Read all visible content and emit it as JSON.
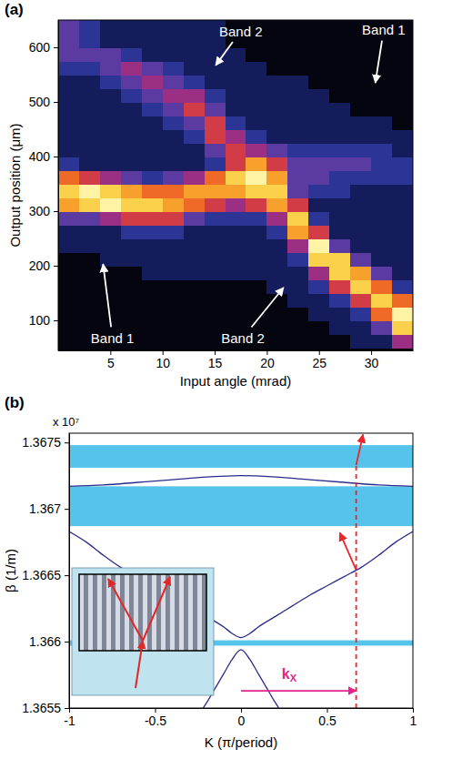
{
  "chart_data": [
    {
      "type": "heatmap",
      "title": "(a)",
      "xlabel": "Input angle (mrad)",
      "ylabel": "Output position (μm)",
      "xlim": [
        0,
        34
      ],
      "ylim": [
        45,
        650
      ],
      "xticks": [
        5,
        10,
        15,
        20,
        25,
        30
      ],
      "yticks": [
        100,
        200,
        300,
        400,
        500,
        600
      ],
      "x_edges": [
        0,
        2,
        4,
        6,
        8,
        10,
        12,
        14,
        16,
        18,
        20,
        22,
        24,
        26,
        28,
        30,
        32,
        34
      ],
      "y_edges": [
        50,
        75,
        100,
        125,
        150,
        175,
        200,
        225,
        250,
        275,
        300,
        325,
        350,
        375,
        400,
        425,
        450,
        475,
        500,
        525,
        550,
        575,
        600,
        625,
        650
      ],
      "cells": [
        [
          0,
          0,
          0,
          0,
          0,
          0,
          0,
          1,
          1,
          3,
          7,
          8,
          6,
          2,
          1,
          1,
          1,
          1,
          1,
          1,
          2,
          3,
          3,
          3
        ],
        [
          0,
          0,
          0,
          0,
          0,
          0,
          0,
          1,
          1,
          3,
          8,
          9,
          5,
          1,
          1,
          1,
          1,
          1,
          1,
          1,
          2,
          3,
          2,
          2
        ],
        [
          0,
          0,
          0,
          0,
          0,
          0,
          1,
          1,
          1,
          4,
          9,
          8,
          4,
          1,
          1,
          1,
          1,
          1,
          1,
          2,
          3,
          3,
          1,
          1
        ],
        [
          0,
          0,
          0,
          0,
          0,
          0,
          1,
          1,
          2,
          5,
          8,
          7,
          3,
          1,
          1,
          1,
          1,
          1,
          2,
          3,
          4,
          2,
          1,
          1
        ],
        [
          0,
          0,
          0,
          0,
          0,
          1,
          1,
          1,
          2,
          5,
          8,
          6,
          2,
          1,
          1,
          1,
          1,
          2,
          3,
          4,
          3,
          1,
          1,
          1
        ],
        [
          0,
          0,
          0,
          0,
          0,
          1,
          1,
          1,
          2,
          5,
          7,
          6,
          3,
          1,
          1,
          1,
          2,
          3,
          4,
          3,
          2,
          1,
          1,
          1
        ],
        [
          0,
          0,
          0,
          0,
          0,
          1,
          1,
          1,
          1,
          3,
          6,
          7,
          4,
          1,
          1,
          2,
          3,
          5,
          4,
          2,
          1,
          1,
          1,
          1
        ],
        [
          0,
          0,
          0,
          0,
          0,
          1,
          1,
          1,
          1,
          2,
          5,
          7,
          6,
          2,
          3,
          5,
          5,
          3,
          2,
          1,
          1,
          1,
          1,
          1
        ],
        [
          0,
          0,
          0,
          0,
          0,
          1,
          1,
          1,
          1,
          2,
          4,
          7,
          8,
          5,
          5,
          4,
          2,
          1,
          1,
          1,
          1,
          1,
          0,
          0
        ],
        [
          0,
          0,
          0,
          0,
          0,
          1,
          1,
          1,
          1,
          2,
          5,
          8,
          9,
          7,
          4,
          2,
          1,
          1,
          1,
          1,
          1,
          0,
          0,
          0
        ],
        [
          0,
          0,
          0,
          0,
          1,
          1,
          1,
          1,
          2,
          4,
          7,
          8,
          7,
          5,
          3,
          1,
          1,
          1,
          1,
          1,
          0,
          0,
          0,
          0
        ],
        [
          0,
          0,
          0,
          1,
          1,
          1,
          2,
          4,
          7,
          8,
          5,
          3,
          3,
          3,
          2,
          1,
          1,
          1,
          1,
          1,
          0,
          0,
          0,
          0
        ],
        [
          0,
          0,
          1,
          1,
          2,
          4,
          8,
          9,
          5,
          2,
          1,
          2,
          3,
          3,
          2,
          1,
          1,
          1,
          1,
          0,
          0,
          0,
          0,
          0
        ],
        [
          0,
          1,
          1,
          2,
          5,
          8,
          8,
          3,
          1,
          1,
          1,
          2,
          2,
          3,
          2,
          1,
          1,
          1,
          0,
          0,
          0,
          0,
          0,
          0
        ],
        [
          1,
          1,
          2,
          5,
          8,
          7,
          3,
          1,
          1,
          1,
          1,
          1,
          2,
          3,
          2,
          1,
          1,
          0,
          0,
          0,
          0,
          0,
          0,
          0
        ],
        [
          1,
          3,
          6,
          8,
          6,
          3,
          1,
          1,
          1,
          1,
          1,
          1,
          2,
          2,
          2,
          1,
          1,
          0,
          0,
          0,
          0,
          0,
          0,
          0
        ],
        [
          4,
          8,
          9,
          6,
          2,
          1,
          1,
          1,
          1,
          1,
          1,
          1,
          2,
          2,
          1,
          1,
          0,
          0,
          0,
          0,
          0,
          0,
          0,
          0
        ]
      ],
      "annotations": [
        {
          "text": "Band 2",
          "xytext": [
            17.5,
            630
          ],
          "xy": [
            15.1,
            567
          ]
        },
        {
          "text": "Band 1",
          "xytext": [
            31.2,
            632
          ],
          "xy": [
            30.4,
            535
          ]
        },
        {
          "text": "Band 1",
          "xytext": [
            5.2,
            68
          ],
          "xy": [
            4.3,
            203
          ]
        },
        {
          "text": "Band 2",
          "xytext": [
            17.7,
            68
          ],
          "xy": [
            21.6,
            160
          ]
        }
      ]
    },
    {
      "type": "line",
      "title": "(b)",
      "xlabel": "K (π/period)",
      "ylabel": "β (1/m)",
      "y_multiplier": "x 10⁷",
      "xlim": [
        -1,
        1
      ],
      "ylim": [
        1.3655,
        1.36757
      ],
      "xticks": [
        -1,
        -0.5,
        0,
        0.5,
        1
      ],
      "yticks": [
        1.3655,
        1.366,
        1.3665,
        1.367,
        1.3675
      ],
      "series": [
        {
          "type": "band",
          "color": "#55c3ea",
          "ranges": [
            [
              1.36731,
              1.36748
            ],
            [
              1.36687,
              1.36717
            ],
            [
              1.36597,
              1.36601
            ]
          ]
        },
        {
          "type": "line",
          "color": "#2b2b8c",
          "x": [
            -1,
            -0.8,
            -0.6,
            -0.4,
            -0.2,
            0,
            0.2,
            0.4,
            0.6,
            0.8,
            1
          ],
          "values": [
            1.36717,
            1.36718,
            1.3672,
            1.36722,
            1.36724,
            1.36725,
            1.36724,
            1.36722,
            1.3672,
            1.36718,
            1.36717
          ]
        },
        {
          "type": "line",
          "color": "#2b2b8c",
          "x": [
            -1,
            -0.9,
            -0.8,
            -0.7,
            -0.6,
            -0.5,
            -0.4,
            -0.3,
            -0.2,
            -0.1,
            -0.05,
            0,
            0.05,
            0.1,
            0.2,
            0.3,
            0.4,
            0.5,
            0.6,
            0.7,
            0.8,
            0.9,
            1
          ],
          "values": [
            1.36683,
            1.36675,
            1.36665,
            1.36656,
            1.36649,
            1.36642,
            1.36635,
            1.36627,
            1.36619,
            1.36611,
            1.36606,
            1.36603,
            1.36606,
            1.36611,
            1.36619,
            1.36627,
            1.36635,
            1.36642,
            1.36649,
            1.36656,
            1.36665,
            1.36675,
            1.36683
          ]
        },
        {
          "type": "line",
          "color": "#2b2b8c",
          "x": [
            -0.22,
            -0.2,
            -0.15,
            -0.1,
            -0.05,
            0,
            0.05,
            0.1,
            0.15,
            0.2,
            0.22
          ],
          "values": [
            1.3655,
            1.36554,
            1.36565,
            1.36576,
            1.36587,
            1.36594,
            1.36587,
            1.36576,
            1.36565,
            1.36554,
            1.3655
          ]
        }
      ],
      "arrows": [
        {
          "from": [
            0,
            1.36563
          ],
          "to": [
            0.67,
            1.36563
          ],
          "color": "#e2238d",
          "line_style": "solid",
          "marker": "arrow"
        },
        {
          "from": [
            0.67,
            1.3655
          ],
          "to": [
            0.67,
            1.36733
          ],
          "color": "#e8262b",
          "line_style": "dashed",
          "marker": "none"
        },
        {
          "from": [
            0.67,
            1.36654
          ],
          "to": [
            0.575,
            1.36682
          ],
          "color": "#e8262b",
          "line_style": "solid",
          "marker": "arrow"
        },
        {
          "from": [
            0.67,
            1.36733
          ],
          "to": [
            0.71,
            1.36756
          ],
          "color": "#e8262b",
          "line_style": "solid",
          "marker": "arrow"
        }
      ],
      "annotations": [
        {
          "text": "k",
          "subscript": "X",
          "xy": [
            0.28,
            1.36576
          ]
        }
      ]
    }
  ]
}
